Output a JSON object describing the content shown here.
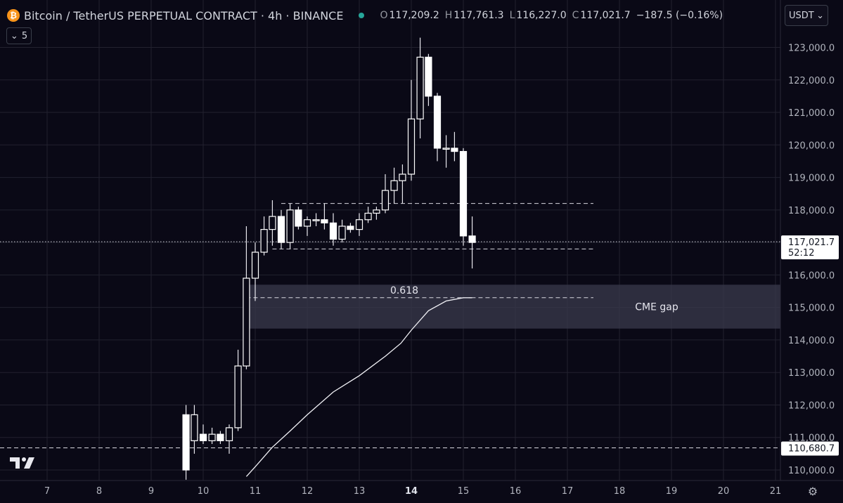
{
  "header": {
    "coin_glyph": "₿",
    "title": "Bitcoin / TetherUS PERPETUAL CONTRACT · 4h · BINANCE",
    "ohlc": [
      {
        "k": "O",
        "v": "117,209.2"
      },
      {
        "k": "H",
        "v": "117,761.3"
      },
      {
        "k": "L",
        "v": "116,227.0"
      },
      {
        "k": "C",
        "v": "117,021.7"
      }
    ],
    "change": "−187.5 (−0.16%)"
  },
  "toolbar": {
    "currency": "USDT",
    "indicator_count": "5",
    "logo_icon": "tradingview-logo",
    "settings_icon": "gear-icon"
  },
  "chart_data": {
    "type": "candlestick",
    "price_scale": {
      "ylim": [
        109700,
        123900
      ],
      "tick_labels": [
        "110,000.0",
        "111,000.0",
        "112,000.0",
        "113,000.0",
        "114,000.0",
        "115,000.0",
        "116,000.0",
        "117,000.0",
        "118,000.0",
        "119,000.0",
        "120,000.0",
        "121,000.0",
        "122,000.0",
        "123,000.0"
      ],
      "tick_values": [
        110000,
        111000,
        112000,
        113000,
        114000,
        115000,
        116000,
        117000,
        118000,
        119000,
        120000,
        121000,
        122000,
        123000
      ]
    },
    "time_scale": {
      "tick_labels": [
        "7",
        "8",
        "9",
        "10",
        "11",
        "12",
        "13",
        "14",
        "15",
        "16",
        "17",
        "18",
        "19",
        "20",
        "21"
      ],
      "tick_values": [
        7,
        8,
        9,
        10,
        11,
        12,
        13,
        14,
        15,
        16,
        17,
        18,
        19,
        20,
        21
      ],
      "bold_labels": [
        "14"
      ]
    },
    "candles": [
      {
        "t": 9.67,
        "o": 111700,
        "h": 112000,
        "l": 109700,
        "c": 110000
      },
      {
        "t": 9.83,
        "o": 110900,
        "h": 112000,
        "l": 110500,
        "c": 111700
      },
      {
        "t": 10.0,
        "o": 111100,
        "h": 111400,
        "l": 110800,
        "c": 110900
      },
      {
        "t": 10.17,
        "o": 110900,
        "h": 111300,
        "l": 110800,
        "c": 111100
      },
      {
        "t": 10.33,
        "o": 111100,
        "h": 111200,
        "l": 110800,
        "c": 110900
      },
      {
        "t": 10.5,
        "o": 110900,
        "h": 111400,
        "l": 110500,
        "c": 111300
      },
      {
        "t": 10.67,
        "o": 111300,
        "h": 113700,
        "l": 111200,
        "c": 113200
      },
      {
        "t": 10.83,
        "o": 113200,
        "h": 117500,
        "l": 113100,
        "c": 115900
      },
      {
        "t": 11.0,
        "o": 115900,
        "h": 117000,
        "l": 115200,
        "c": 116700
      },
      {
        "t": 11.17,
        "o": 116700,
        "h": 117800,
        "l": 116600,
        "c": 117400
      },
      {
        "t": 11.33,
        "o": 117400,
        "h": 118300,
        "l": 116900,
        "c": 117800
      },
      {
        "t": 11.5,
        "o": 117800,
        "h": 118000,
        "l": 116800,
        "c": 117000
      },
      {
        "t": 11.67,
        "o": 117000,
        "h": 118200,
        "l": 116800,
        "c": 118000
      },
      {
        "t": 11.83,
        "o": 118000,
        "h": 118100,
        "l": 117400,
        "c": 117500
      },
      {
        "t": 12.0,
        "o": 117500,
        "h": 117800,
        "l": 117200,
        "c": 117700
      },
      {
        "t": 12.17,
        "o": 117700,
        "h": 117900,
        "l": 117500,
        "c": 117700
      },
      {
        "t": 12.33,
        "o": 117700,
        "h": 118200,
        "l": 117400,
        "c": 117600
      },
      {
        "t": 12.5,
        "o": 117600,
        "h": 117900,
        "l": 116900,
        "c": 117100
      },
      {
        "t": 12.67,
        "o": 117100,
        "h": 117700,
        "l": 117000,
        "c": 117500
      },
      {
        "t": 12.83,
        "o": 117500,
        "h": 117600,
        "l": 117300,
        "c": 117400
      },
      {
        "t": 13.0,
        "o": 117400,
        "h": 117900,
        "l": 117200,
        "c": 117700
      },
      {
        "t": 13.17,
        "o": 117700,
        "h": 118100,
        "l": 117600,
        "c": 117900
      },
      {
        "t": 13.33,
        "o": 117900,
        "h": 118100,
        "l": 117700,
        "c": 118000
      },
      {
        "t": 13.5,
        "o": 118000,
        "h": 119100,
        "l": 117900,
        "c": 118600
      },
      {
        "t": 13.67,
        "o": 118600,
        "h": 119300,
        "l": 118200,
        "c": 118900
      },
      {
        "t": 13.83,
        "o": 118900,
        "h": 119400,
        "l": 118200,
        "c": 119100
      },
      {
        "t": 14.0,
        "o": 119100,
        "h": 122000,
        "l": 118900,
        "c": 120800
      },
      {
        "t": 14.17,
        "o": 120800,
        "h": 123300,
        "l": 120200,
        "c": 122700
      },
      {
        "t": 14.33,
        "o": 122700,
        "h": 122800,
        "l": 121200,
        "c": 121500
      },
      {
        "t": 14.5,
        "o": 121500,
        "h": 121600,
        "l": 119500,
        "c": 119900
      },
      {
        "t": 14.67,
        "o": 119900,
        "h": 120300,
        "l": 119300,
        "c": 119900
      },
      {
        "t": 14.83,
        "o": 119900,
        "h": 120400,
        "l": 119500,
        "c": 119800
      },
      {
        "t": 15.0,
        "o": 119800,
        "h": 119900,
        "l": 116900,
        "c": 117200
      },
      {
        "t": 15.17,
        "o": 117200,
        "h": 117800,
        "l": 116200,
        "c": 117000
      }
    ],
    "moving_average": {
      "x": [
        10.83,
        11.0,
        11.33,
        11.67,
        12.0,
        12.5,
        13.0,
        13.5,
        13.8,
        14.0,
        14.33,
        14.67,
        15.0,
        15.17
      ],
      "y": [
        109800,
        110100,
        110700,
        111200,
        111700,
        112400,
        112900,
        113500,
        113900,
        114300,
        114900,
        115200,
        115300,
        115300
      ]
    },
    "horizontal_levels": [
      {
        "price": 118200,
        "style": "dashed",
        "t_start": 11.5,
        "t_end": 17.5
      },
      {
        "price": 116800,
        "style": "dashed",
        "t_start": 11.33,
        "t_end": 17.5
      },
      {
        "price": 115300,
        "style": "dashed",
        "t_start": 10.83,
        "t_end": 17.5,
        "label": "0.618"
      },
      {
        "price": 117021.7,
        "style": "dotted",
        "full_width": true
      },
      {
        "price": 110680.7,
        "style": "dashed",
        "full_width": true
      }
    ],
    "zones": [
      {
        "label": "CME gap",
        "price_top": 115700,
        "price_bottom": 114350,
        "t_start": 10.83,
        "t_end": 21
      }
    ],
    "price_tags": [
      {
        "price": 117021.7,
        "label": "117,021.7",
        "sublabel": "52:12"
      },
      {
        "price": 110680.7,
        "label": "110,680.7"
      }
    ],
    "colors": {
      "background": "#0a0916",
      "grid": "#22212f",
      "candle_up": "#ffffff",
      "candle_down": "#ffffff",
      "zone": "#3a3a4c"
    }
  }
}
